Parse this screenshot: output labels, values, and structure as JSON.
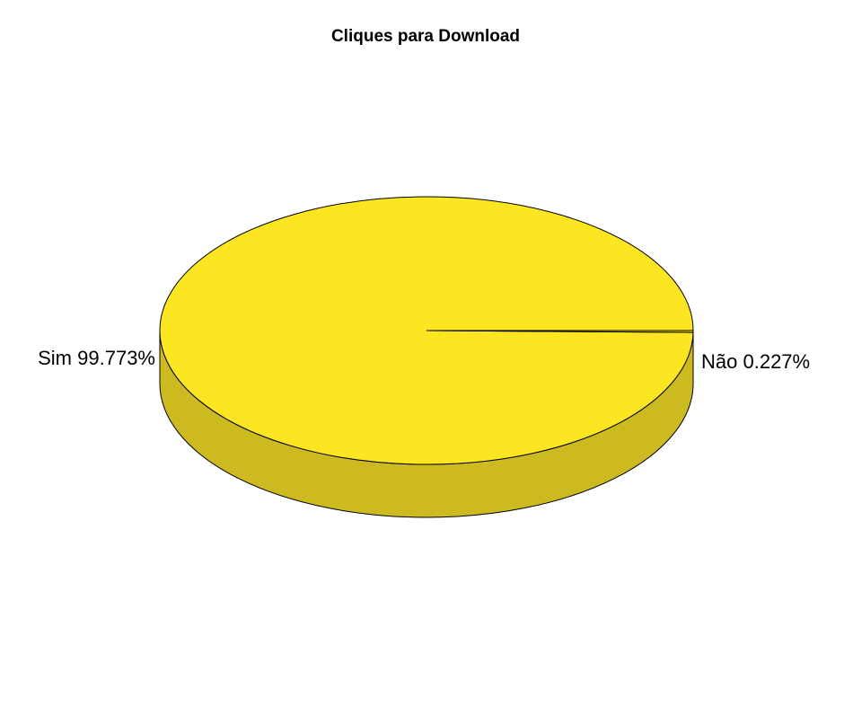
{
  "chart_data": {
    "type": "pie",
    "title": "Cliques para Download",
    "style": "3d",
    "slices": [
      {
        "label": "Sim",
        "percent_label": "99.773%",
        "value": 99.773,
        "color": "#FCE622"
      },
      {
        "label": "Não",
        "percent_label": "0.227%",
        "value": 0.227,
        "color": "#FCE622"
      }
    ],
    "side_color": "#CCBA20",
    "outline_color": "#000000"
  }
}
